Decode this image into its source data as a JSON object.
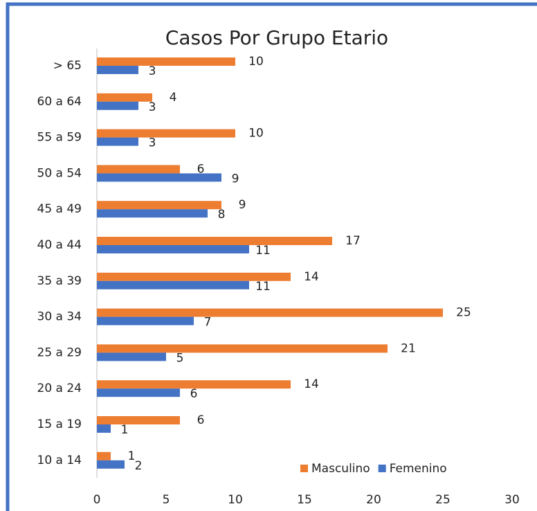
{
  "chart_data": {
    "type": "hbar",
    "title": "Casos Por Grupo Etario",
    "categories": [
      "> 65",
      "60 a 64",
      "55 a 59",
      "50 a 54",
      "45 a 49",
      "40 a 44",
      "35 a 39",
      "30 a 34",
      "25 a 29",
      "20 a 24",
      "15 a 19",
      "10 a 14"
    ],
    "series": [
      {
        "name": "Masculino",
        "color": "#ed7d31",
        "values": [
          10,
          4,
          10,
          6,
          9,
          17,
          14,
          25,
          21,
          14,
          6,
          1
        ]
      },
      {
        "name": "Femenino",
        "color": "#4472c4",
        "values": [
          3,
          3,
          3,
          9,
          8,
          11,
          11,
          7,
          5,
          6,
          1,
          2
        ]
      }
    ],
    "xlim": [
      0,
      30
    ],
    "xticks": [
      0,
      5,
      10,
      15,
      20,
      25,
      30
    ],
    "legend": "bottom-right"
  }
}
